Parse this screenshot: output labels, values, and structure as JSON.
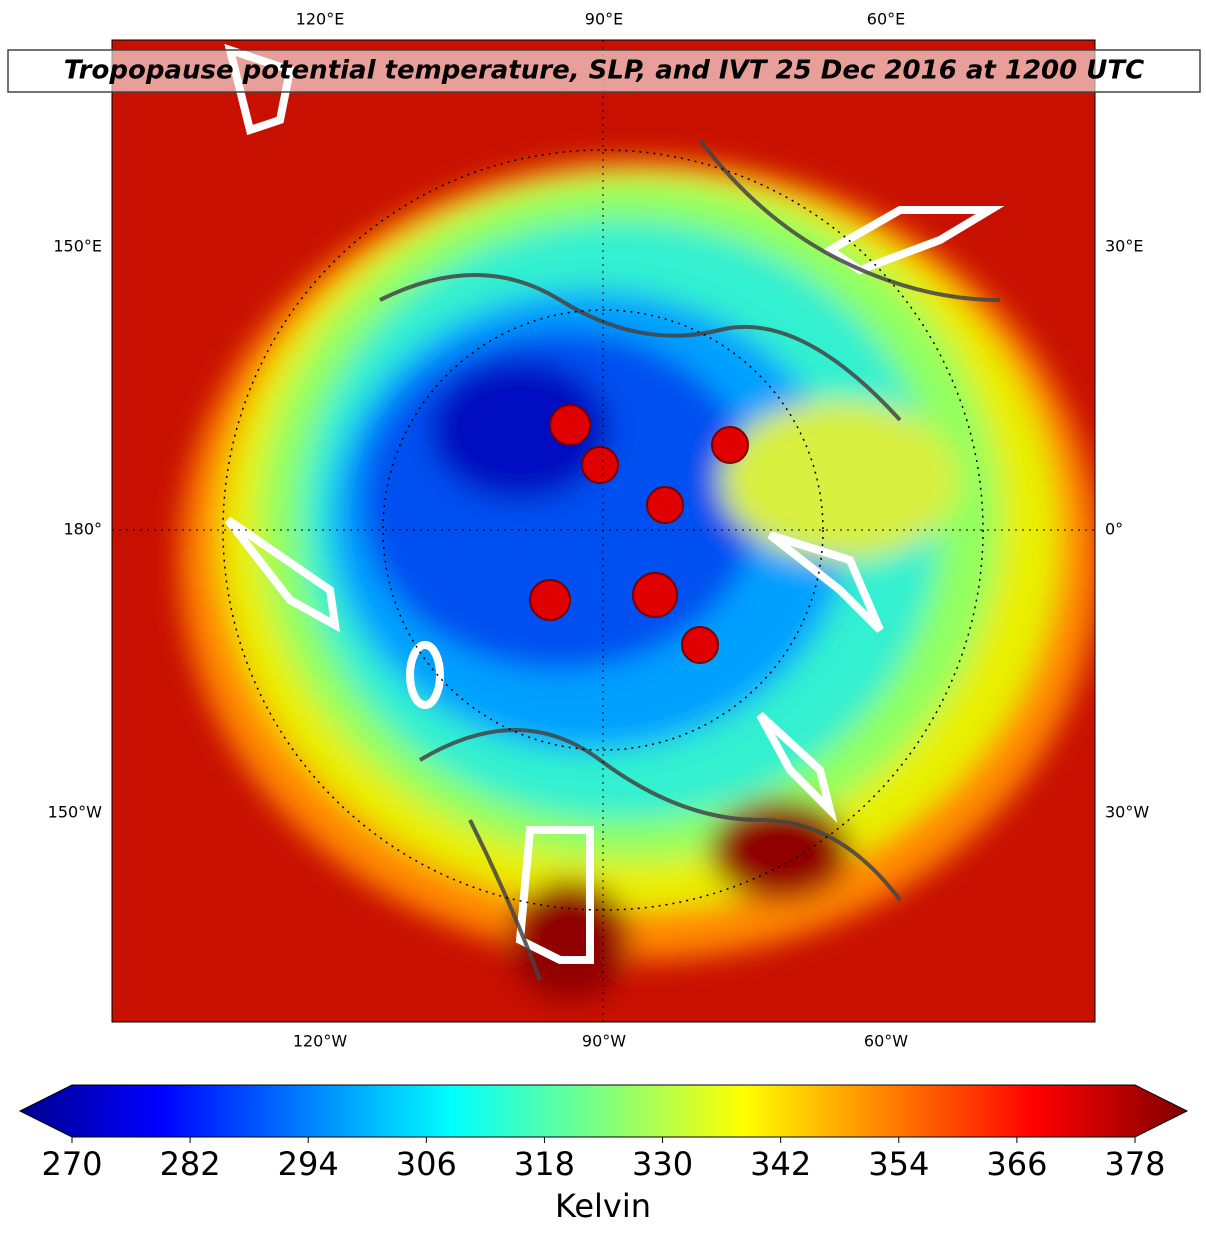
{
  "title": "Tropopause potential temperature, SLP, and IVT 25 Dec 2016 at 1200 UTC",
  "map": {
    "top_labels": [
      "120°E",
      "90°E",
      "60°E"
    ],
    "bottom_labels": [
      "120°W",
      "90°W",
      "60°W"
    ],
    "left_labels": [
      "150°E",
      "180°",
      "150°W"
    ],
    "right_labels": [
      "30°E",
      "0°",
      "30°W"
    ]
  },
  "colorbar": {
    "label": "Kelvin",
    "colormap": "jet",
    "lim": [
      270,
      378
    ],
    "ticks": [
      270,
      282,
      294,
      306,
      318,
      330,
      342,
      354,
      366,
      378
    ]
  }
}
